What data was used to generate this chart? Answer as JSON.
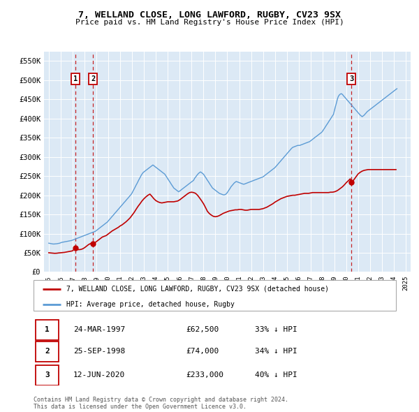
{
  "title": "7, WELLAND CLOSE, LONG LAWFORD, RUGBY, CV23 9SX",
  "subtitle": "Price paid vs. HM Land Registry's House Price Index (HPI)",
  "ylim": [
    0,
    575000
  ],
  "yticks": [
    0,
    50000,
    100000,
    150000,
    200000,
    250000,
    300000,
    350000,
    400000,
    450000,
    500000,
    550000
  ],
  "ytick_labels": [
    "£0",
    "£50K",
    "£100K",
    "£150K",
    "£200K",
    "£250K",
    "£300K",
    "£350K",
    "£400K",
    "£450K",
    "£500K",
    "£550K"
  ],
  "xlim_start": 1994.6,
  "xlim_end": 2025.4,
  "bg_color": "#dce9f5",
  "legend_label_red": "7, WELLAND CLOSE, LONG LAWFORD, RUGBY, CV23 9SX (detached house)",
  "legend_label_blue": "HPI: Average price, detached house, Rugby",
  "footnote": "Contains HM Land Registry data © Crown copyright and database right 2024.\nThis data is licensed under the Open Government Licence v3.0.",
  "transactions": [
    {
      "num": 1,
      "date": "24-MAR-1997",
      "price": "£62,500",
      "pct": "33% ↓ HPI",
      "year": 1997.22,
      "value": 62500
    },
    {
      "num": 2,
      "date": "25-SEP-1998",
      "price": "£74,000",
      "pct": "34% ↓ HPI",
      "year": 1998.73,
      "value": 74000
    },
    {
      "num": 3,
      "date": "12-JUN-2020",
      "price": "£233,000",
      "pct": "40% ↓ HPI",
      "year": 2020.44,
      "value": 233000
    }
  ],
  "hpi_x": [
    1995.0,
    1995.08,
    1995.17,
    1995.25,
    1995.33,
    1995.42,
    1995.5,
    1995.58,
    1995.67,
    1995.75,
    1995.83,
    1995.92,
    1996.0,
    1996.08,
    1996.17,
    1996.25,
    1996.33,
    1996.42,
    1996.5,
    1996.58,
    1996.67,
    1996.75,
    1996.83,
    1996.92,
    1997.0,
    1997.08,
    1997.17,
    1997.25,
    1997.33,
    1997.42,
    1997.5,
    1997.58,
    1997.67,
    1997.75,
    1997.83,
    1997.92,
    1998.0,
    1998.08,
    1998.17,
    1998.25,
    1998.33,
    1998.42,
    1998.5,
    1998.58,
    1998.67,
    1998.75,
    1998.83,
    1998.92,
    1999.0,
    1999.08,
    1999.17,
    1999.25,
    1999.33,
    1999.42,
    1999.5,
    1999.58,
    1999.67,
    1999.75,
    1999.83,
    1999.92,
    2000.0,
    2000.08,
    2000.17,
    2000.25,
    2000.33,
    2000.42,
    2000.5,
    2000.58,
    2000.67,
    2000.75,
    2000.83,
    2000.92,
    2001.0,
    2001.08,
    2001.17,
    2001.25,
    2001.33,
    2001.42,
    2001.5,
    2001.58,
    2001.67,
    2001.75,
    2001.83,
    2001.92,
    2002.0,
    2002.08,
    2002.17,
    2002.25,
    2002.33,
    2002.42,
    2002.5,
    2002.58,
    2002.67,
    2002.75,
    2002.83,
    2002.92,
    2003.0,
    2003.08,
    2003.17,
    2003.25,
    2003.33,
    2003.42,
    2003.5,
    2003.58,
    2003.67,
    2003.75,
    2003.83,
    2003.92,
    2004.0,
    2004.08,
    2004.17,
    2004.25,
    2004.33,
    2004.42,
    2004.5,
    2004.58,
    2004.67,
    2004.75,
    2004.83,
    2004.92,
    2005.0,
    2005.08,
    2005.17,
    2005.25,
    2005.33,
    2005.42,
    2005.5,
    2005.58,
    2005.67,
    2005.75,
    2005.83,
    2005.92,
    2006.0,
    2006.08,
    2006.17,
    2006.25,
    2006.33,
    2006.42,
    2006.5,
    2006.58,
    2006.67,
    2006.75,
    2006.83,
    2006.92,
    2007.0,
    2007.08,
    2007.17,
    2007.25,
    2007.33,
    2007.42,
    2007.5,
    2007.58,
    2007.67,
    2007.75,
    2007.83,
    2007.92,
    2008.0,
    2008.08,
    2008.17,
    2008.25,
    2008.33,
    2008.42,
    2008.5,
    2008.58,
    2008.67,
    2008.75,
    2008.83,
    2008.92,
    2009.0,
    2009.08,
    2009.17,
    2009.25,
    2009.33,
    2009.42,
    2009.5,
    2009.58,
    2009.67,
    2009.75,
    2009.83,
    2009.92,
    2010.0,
    2010.08,
    2010.17,
    2010.25,
    2010.33,
    2010.42,
    2010.5,
    2010.58,
    2010.67,
    2010.75,
    2010.83,
    2010.92,
    2011.0,
    2011.08,
    2011.17,
    2011.25,
    2011.33,
    2011.42,
    2011.5,
    2011.58,
    2011.67,
    2011.75,
    2011.83,
    2011.92,
    2012.0,
    2012.08,
    2012.17,
    2012.25,
    2012.33,
    2012.42,
    2012.5,
    2012.58,
    2012.67,
    2012.75,
    2012.83,
    2012.92,
    2013.0,
    2013.08,
    2013.17,
    2013.25,
    2013.33,
    2013.42,
    2013.5,
    2013.58,
    2013.67,
    2013.75,
    2013.83,
    2013.92,
    2014.0,
    2014.08,
    2014.17,
    2014.25,
    2014.33,
    2014.42,
    2014.5,
    2014.58,
    2014.67,
    2014.75,
    2014.83,
    2014.92,
    2015.0,
    2015.08,
    2015.17,
    2015.25,
    2015.33,
    2015.42,
    2015.5,
    2015.58,
    2015.67,
    2015.75,
    2015.83,
    2015.92,
    2016.0,
    2016.08,
    2016.17,
    2016.25,
    2016.33,
    2016.42,
    2016.5,
    2016.58,
    2016.67,
    2016.75,
    2016.83,
    2016.92,
    2017.0,
    2017.08,
    2017.17,
    2017.25,
    2017.33,
    2017.42,
    2017.5,
    2017.58,
    2017.67,
    2017.75,
    2017.83,
    2017.92,
    2018.0,
    2018.08,
    2018.17,
    2018.25,
    2018.33,
    2018.42,
    2018.5,
    2018.58,
    2018.67,
    2018.75,
    2018.83,
    2018.92,
    2019.0,
    2019.08,
    2019.17,
    2019.25,
    2019.33,
    2019.42,
    2019.5,
    2019.58,
    2019.67,
    2019.75,
    2019.83,
    2019.92,
    2020.0,
    2020.08,
    2020.17,
    2020.25,
    2020.33,
    2020.42,
    2020.5,
    2020.58,
    2020.67,
    2020.75,
    2020.83,
    2020.92,
    2021.0,
    2021.08,
    2021.17,
    2021.25,
    2021.33,
    2021.42,
    2021.5,
    2021.58,
    2021.67,
    2021.75,
    2021.83,
    2021.92,
    2022.0,
    2022.08,
    2022.17,
    2022.25,
    2022.33,
    2022.42,
    2022.5,
    2022.58,
    2022.67,
    2022.75,
    2022.83,
    2022.92,
    2023.0,
    2023.08,
    2023.17,
    2023.25,
    2023.33,
    2023.42,
    2023.5,
    2023.58,
    2023.67,
    2023.75,
    2023.83,
    2023.92,
    2024.0,
    2024.08,
    2024.17,
    2024.25
  ],
  "hpi_y": [
    75000,
    74500,
    74000,
    73500,
    73000,
    72800,
    73000,
    73200,
    73500,
    74000,
    74500,
    75000,
    76000,
    77000,
    77500,
    78000,
    78500,
    79000,
    79500,
    80000,
    80500,
    81000,
    81500,
    82000,
    83000,
    84000,
    85000,
    86000,
    87000,
    88000,
    89000,
    90000,
    91000,
    92000,
    93000,
    94000,
    95000,
    96000,
    97000,
    98000,
    99000,
    100000,
    101000,
    102000,
    103000,
    104000,
    105000,
    106000,
    108000,
    110000,
    112000,
    114000,
    116000,
    118000,
    120000,
    122000,
    124000,
    126000,
    128000,
    130000,
    133000,
    136000,
    139000,
    142000,
    145000,
    148000,
    151000,
    154000,
    157000,
    160000,
    163000,
    166000,
    169000,
    172000,
    175000,
    178000,
    181000,
    184000,
    187000,
    190000,
    193000,
    196000,
    199000,
    202000,
    206000,
    211000,
    216000,
    221000,
    226000,
    231000,
    236000,
    241000,
    246000,
    251000,
    255000,
    259000,
    261000,
    263000,
    265000,
    267000,
    269000,
    271000,
    273000,
    275000,
    277000,
    279000,
    277000,
    275000,
    273000,
    271000,
    269000,
    267000,
    265000,
    263000,
    261000,
    259000,
    257000,
    255000,
    251000,
    247000,
    243000,
    239000,
    235000,
    231000,
    227000,
    223000,
    219000,
    217000,
    215000,
    213000,
    211000,
    209000,
    211000,
    213000,
    215000,
    217000,
    219000,
    221000,
    223000,
    225000,
    227000,
    229000,
    231000,
    233000,
    235000,
    237000,
    239000,
    244000,
    247000,
    251000,
    254000,
    257000,
    259000,
    261000,
    259000,
    257000,
    255000,
    251000,
    247000,
    243000,
    239000,
    235000,
    231000,
    227000,
    223000,
    219000,
    217000,
    215000,
    213000,
    211000,
    209000,
    207000,
    205000,
    204000,
    203000,
    202000,
    201000,
    201000,
    202000,
    204000,
    207000,
    211000,
    215000,
    219000,
    223000,
    226000,
    229000,
    232000,
    234000,
    236000,
    235000,
    234000,
    233000,
    232000,
    231000,
    230000,
    229000,
    229000,
    230000,
    231000,
    232000,
    233000,
    234000,
    235000,
    236000,
    237000,
    238000,
    239000,
    240000,
    241000,
    242000,
    243000,
    244000,
    245000,
    246000,
    247000,
    248000,
    250000,
    252000,
    254000,
    256000,
    258000,
    260000,
    262000,
    264000,
    266000,
    268000,
    270000,
    272000,
    275000,
    278000,
    281000,
    284000,
    287000,
    290000,
    293000,
    296000,
    299000,
    302000,
    305000,
    308000,
    311000,
    314000,
    317000,
    320000,
    323000,
    325000,
    326000,
    327000,
    328000,
    329000,
    330000,
    330000,
    330000,
    331000,
    332000,
    333000,
    334000,
    335000,
    336000,
    337000,
    338000,
    339000,
    340000,
    342000,
    344000,
    346000,
    348000,
    350000,
    352000,
    354000,
    356000,
    358000,
    360000,
    362000,
    364000,
    367000,
    371000,
    375000,
    379000,
    383000,
    387000,
    391000,
    395000,
    399000,
    403000,
    407000,
    411000,
    421000,
    431000,
    441000,
    451000,
    458000,
    462000,
    464000,
    465000,
    463000,
    460000,
    457000,
    454000,
    451000,
    448000,
    445000,
    442000,
    439000,
    436000,
    433000,
    430000,
    427000,
    424000,
    421000,
    418000,
    415000,
    412000,
    409000,
    407000,
    405000,
    407000,
    409000,
    412000,
    415000,
    418000,
    420000,
    422000,
    424000,
    426000,
    428000,
    430000,
    432000,
    434000,
    436000,
    438000,
    440000,
    442000,
    444000,
    446000,
    448000,
    450000,
    452000,
    454000,
    456000,
    458000,
    460000,
    462000,
    464000,
    466000,
    468000,
    470000,
    472000,
    474000,
    476000,
    478000
  ],
  "red_x": [
    1995.0,
    1995.17,
    1995.33,
    1995.5,
    1995.67,
    1995.83,
    1996.0,
    1996.17,
    1996.33,
    1996.5,
    1996.67,
    1996.83,
    1997.0,
    1997.22,
    1997.33,
    1997.5,
    1997.67,
    1997.83,
    1998.0,
    1998.17,
    1998.33,
    1998.5,
    1998.73,
    1998.83,
    1999.0,
    1999.17,
    1999.33,
    1999.5,
    1999.67,
    1999.83,
    2000.0,
    2000.17,
    2000.33,
    2000.5,
    2000.67,
    2000.83,
    2001.0,
    2001.17,
    2001.33,
    2001.5,
    2001.67,
    2001.83,
    2002.0,
    2002.17,
    2002.33,
    2002.5,
    2002.67,
    2002.83,
    2003.0,
    2003.17,
    2003.33,
    2003.5,
    2003.67,
    2003.83,
    2004.0,
    2004.17,
    2004.33,
    2004.5,
    2004.67,
    2004.83,
    2005.0,
    2005.17,
    2005.33,
    2005.5,
    2005.67,
    2005.83,
    2006.0,
    2006.17,
    2006.33,
    2006.5,
    2006.67,
    2006.83,
    2007.0,
    2007.17,
    2007.33,
    2007.5,
    2007.67,
    2007.83,
    2008.0,
    2008.17,
    2008.33,
    2008.5,
    2008.67,
    2008.83,
    2009.0,
    2009.17,
    2009.33,
    2009.5,
    2009.67,
    2009.83,
    2010.0,
    2010.17,
    2010.33,
    2010.5,
    2010.67,
    2010.83,
    2011.0,
    2011.17,
    2011.33,
    2011.5,
    2011.67,
    2011.83,
    2012.0,
    2012.17,
    2012.33,
    2012.5,
    2012.67,
    2012.83,
    2013.0,
    2013.17,
    2013.33,
    2013.5,
    2013.67,
    2013.83,
    2014.0,
    2014.17,
    2014.33,
    2014.5,
    2014.67,
    2014.83,
    2015.0,
    2015.17,
    2015.33,
    2015.5,
    2015.67,
    2015.83,
    2016.0,
    2016.17,
    2016.33,
    2016.5,
    2016.67,
    2016.83,
    2017.0,
    2017.17,
    2017.33,
    2017.5,
    2017.67,
    2017.83,
    2018.0,
    2018.17,
    2018.33,
    2018.5,
    2018.67,
    2018.83,
    2019.0,
    2019.17,
    2019.33,
    2019.5,
    2019.67,
    2019.83,
    2020.0,
    2020.17,
    2020.33,
    2020.44,
    2020.67,
    2020.83,
    2021.0,
    2021.17,
    2021.33,
    2021.5,
    2021.67,
    2021.83,
    2022.0,
    2022.17,
    2022.33,
    2022.5,
    2022.67,
    2022.83,
    2023.0,
    2023.17,
    2023.33,
    2023.5,
    2023.67,
    2023.83,
    2024.0,
    2024.17
  ],
  "red_y": [
    50000,
    49500,
    49000,
    48500,
    48800,
    49500,
    50000,
    50500,
    51000,
    52000,
    53000,
    54000,
    55000,
    62500,
    60000,
    58000,
    58500,
    60000,
    63000,
    67000,
    71000,
    74000,
    74000,
    75000,
    79000,
    83000,
    87000,
    91000,
    93000,
    95000,
    99000,
    103000,
    107000,
    110000,
    113000,
    116000,
    120000,
    123000,
    127000,
    131000,
    136000,
    141000,
    148000,
    155000,
    163000,
    171000,
    178000,
    185000,
    191000,
    196000,
    200000,
    203000,
    197000,
    191000,
    186000,
    183000,
    181000,
    180000,
    181000,
    182000,
    183000,
    183000,
    183000,
    183000,
    184000,
    185000,
    188000,
    192000,
    196000,
    200000,
    204000,
    207000,
    208000,
    207000,
    205000,
    200000,
    193000,
    186000,
    178000,
    168000,
    158000,
    152000,
    148000,
    145000,
    144000,
    145000,
    147000,
    150000,
    153000,
    155000,
    157000,
    159000,
    160000,
    161000,
    162000,
    162000,
    163000,
    163000,
    162000,
    161000,
    161000,
    162000,
    163000,
    163000,
    163000,
    163000,
    163000,
    164000,
    165000,
    167000,
    169000,
    172000,
    175000,
    178000,
    182000,
    185000,
    188000,
    191000,
    193000,
    195000,
    197000,
    198000,
    199000,
    200000,
    200000,
    201000,
    202000,
    203000,
    204000,
    205000,
    205000,
    205000,
    206000,
    207000,
    207000,
    207000,
    207000,
    207000,
    207000,
    207000,
    207000,
    207000,
    208000,
    208000,
    209000,
    211000,
    214000,
    218000,
    222000,
    227000,
    233000,
    238000,
    243000,
    233000,
    242000,
    249000,
    256000,
    260000,
    263000,
    265000,
    266000,
    267000,
    267000,
    267000,
    267000,
    267000,
    267000,
    267000,
    267000,
    267000,
    267000,
    267000,
    267000,
    267000,
    267000,
    267000
  ]
}
